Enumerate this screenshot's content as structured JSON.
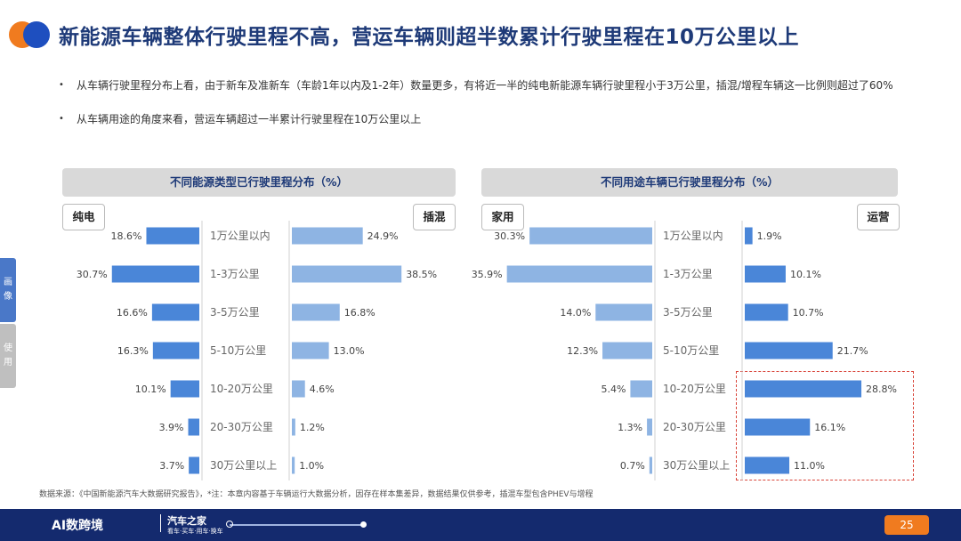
{
  "header": {
    "title": "新能源车辆整体行驶里程不高，营运车辆则超半数累计行驶里程在10万公里以上",
    "logo_colors": [
      "#f07b1f",
      "#1e4fbf"
    ]
  },
  "bullets": [
    "从车辆行驶里程分布上看，由于新车及准新车（车龄1年以内及1-2年）数量更多，有将近一半的纯电新能源车辆行驶里程小于3万公里，插混/增程车辆这一比例则超过了60%",
    "从车辆用途的角度来看，营运车辆超过一半累计行驶里程在10万公里以上"
  ],
  "side_tabs": [
    "画像",
    "使用"
  ],
  "chart_data": [
    {
      "type": "bar",
      "title": "不同能源类型已行驶里程分布（%）",
      "categories": [
        "1万公里以内",
        "1-3万公里",
        "3-5万公里",
        "5-10万公里",
        "10-20万公里",
        "20-30万公里",
        "30万公里以上"
      ],
      "series": [
        {
          "name": "纯电",
          "values": [
            18.6,
            30.7,
            16.6,
            16.3,
            10.1,
            3.9,
            3.7
          ],
          "value_labels": [
            "18.6%",
            "30.7%",
            "16.6%",
            "16.3%",
            "10.1%",
            "3.9%",
            "3.7%"
          ],
          "color": "#4a86d8"
        },
        {
          "name": "插混",
          "values": [
            24.9,
            38.5,
            16.8,
            13.0,
            4.6,
            1.2,
            1.0
          ],
          "value_labels": [
            "24.9%",
            "38.5%",
            "16.8%",
            "13.0%",
            "4.6%",
            "1.2%",
            "1.0%"
          ],
          "color": "#8eb4e3"
        }
      ],
      "layout": "butterfly"
    },
    {
      "type": "bar",
      "title": "不同用途车辆已行驶里程分布（%）",
      "categories": [
        "1万公里以内",
        "1-3万公里",
        "3-5万公里",
        "5-10万公里",
        "10-20万公里",
        "20-30万公里",
        "30万公里以上"
      ],
      "series": [
        {
          "name": "家用",
          "values": [
            30.3,
            35.9,
            14.0,
            12.3,
            5.4,
            1.3,
            0.7
          ],
          "value_labels": [
            "30.3%",
            "35.9%",
            "14.0%",
            "12.3%",
            "5.4%",
            "1.3%",
            "0.7%"
          ],
          "color": "#8eb4e3"
        },
        {
          "name": "运营",
          "values": [
            1.9,
            10.1,
            10.7,
            21.7,
            28.8,
            16.1,
            11.0
          ],
          "value_labels": [
            "1.9%",
            "10.1%",
            "10.7%",
            "21.7%",
            "28.8%",
            "16.1%",
            "11.0%"
          ],
          "color": "#4a86d8"
        }
      ],
      "layout": "butterfly",
      "highlight": {
        "series": "运营",
        "categories": [
          "10-20万公里",
          "20-30万公里",
          "30万公里以上"
        ],
        "color": "#d9463b"
      }
    }
  ],
  "footer": {
    "source": "数据来源：《中国新能源汽车大数据研究报告》，*注：本章内容基于车辆运行大数据分析，因存在样本集差异，数据结果仅供参考，插混车型包含PHEV与增程",
    "brand_left": "AI数跨境",
    "brand_mid": "汽车之家",
    "brand_sub": "看车·买车·用车·换车",
    "page": "25",
    "band_color": "#142a6e",
    "page_color": "#f07b1f"
  }
}
